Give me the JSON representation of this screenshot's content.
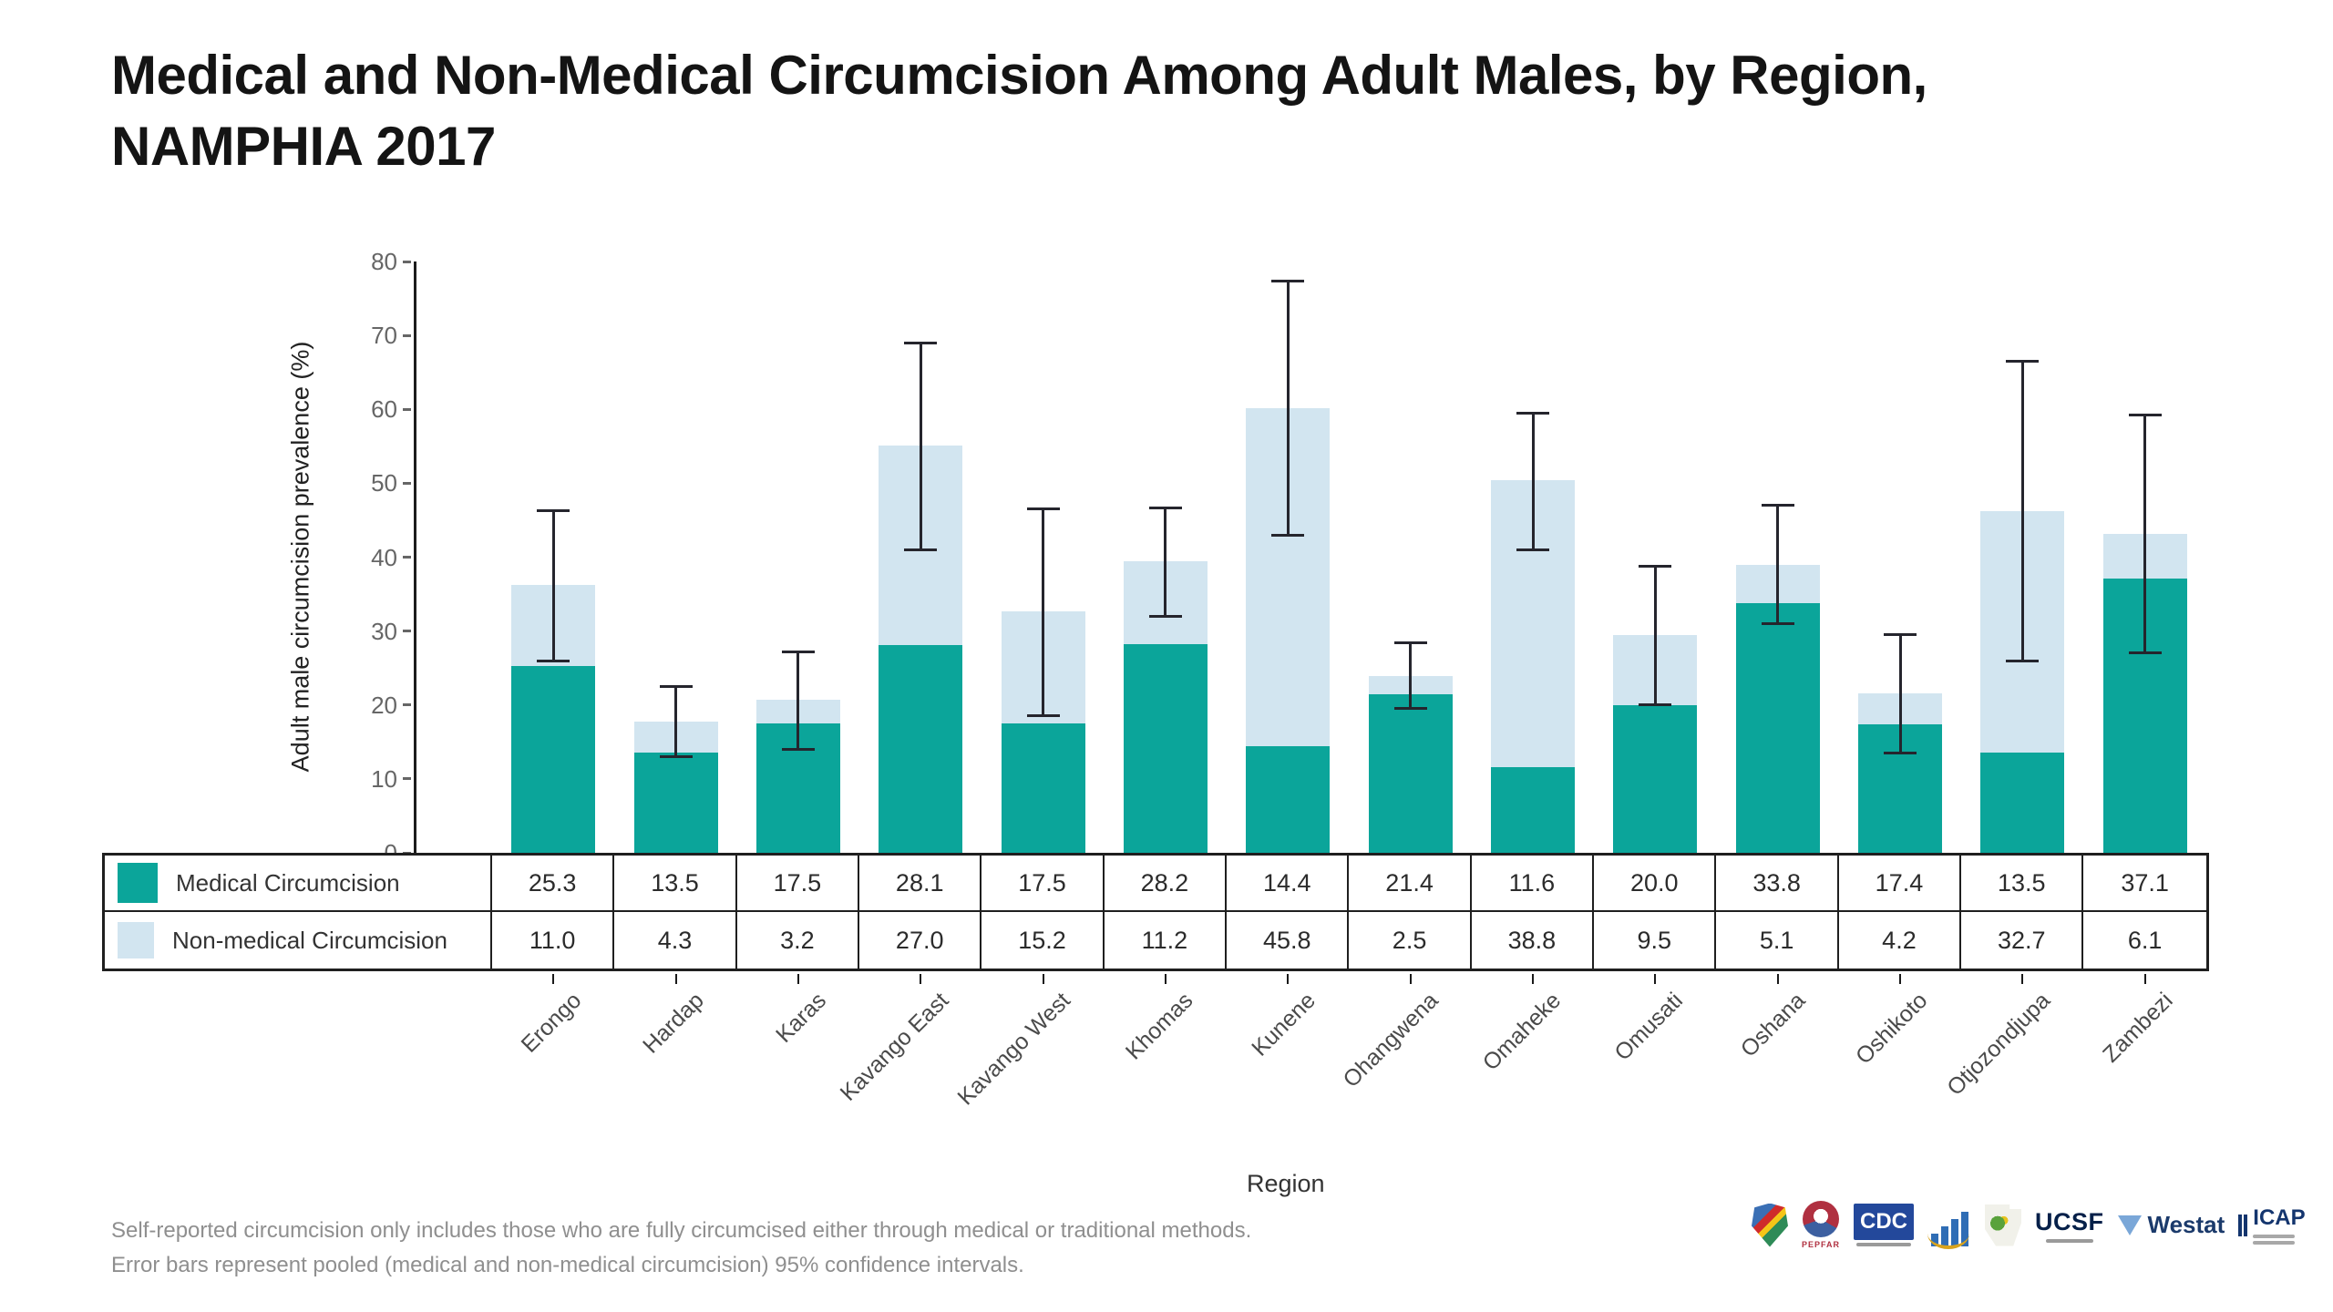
{
  "title": {
    "line1": "Medical and Non-Medical Circumcision Among Adult Males, by Region,",
    "line2": "NAMPHIA 2017"
  },
  "chart_data": {
    "type": "bar",
    "stacked": true,
    "title": "Medical and Non-Medical Circumcision Among Adult Males, by Region, NAMPHIA 2017",
    "xlabel": "Region",
    "ylabel": "Adult male circumcision prevalence (%)",
    "ylim": [
      0,
      80
    ],
    "yticks": [
      0,
      10,
      20,
      30,
      40,
      50,
      60,
      70,
      80
    ],
    "grid": false,
    "legend_position": "table-left",
    "categories": [
      "Erongo",
      "Hardap",
      "Karas",
      "Kavango East",
      "Kavango West",
      "Khomas",
      "Kunene",
      "Ohangwena",
      "Omaheke",
      "Omusati",
      "Oshana",
      "Oshikoto",
      "Otjozondjupa",
      "Zambezi"
    ],
    "series": [
      {
        "name": "Medical Circumcision",
        "color": "#0ba59a",
        "values": [
          25.3,
          13.5,
          17.5,
          28.1,
          17.5,
          28.2,
          14.4,
          21.4,
          11.6,
          20.0,
          33.8,
          17.4,
          13.5,
          37.1
        ]
      },
      {
        "name": "Non-medical Circumcision",
        "color": "#d2e5f0",
        "values": [
          11.0,
          4.3,
          3.2,
          27.0,
          15.2,
          11.2,
          45.8,
          2.5,
          38.8,
          9.5,
          5.1,
          4.2,
          32.7,
          6.1
        ]
      }
    ],
    "totals": [
      36.3,
      17.8,
      20.7,
      55.1,
      32.7,
      39.4,
      60.2,
      23.9,
      50.4,
      29.5,
      38.9,
      21.6,
      46.2,
      43.2
    ],
    "error_bars": {
      "description": "pooled (medical and non-medical circumcision) 95% confidence intervals",
      "low": [
        26.0,
        13.0,
        14.0,
        41.0,
        18.5,
        32.0,
        43.0,
        19.5,
        41.0,
        20.0,
        31.0,
        13.5,
        26.0,
        27.0
      ],
      "high": [
        46.3,
        22.5,
        27.2,
        69.0,
        46.5,
        46.6,
        77.3,
        28.4,
        59.5,
        38.8,
        47.0,
        29.5,
        66.5,
        59.2
      ]
    }
  },
  "footnote": {
    "line1": "Self-reported circumcision only includes those who are fully circumcised either through medical or traditional methods.",
    "line2": "Error bars represent pooled (medical and non-medical circumcision) 95% confidence intervals."
  },
  "colors": {
    "medical": "#0ba59a",
    "nonmedical": "#d2e5f0",
    "error_bar": "#25252d",
    "axis": "#1c1c1c",
    "table_border": "#1f1f1f"
  },
  "logos": [
    {
      "name": "Namibia coat of arms",
      "text": ""
    },
    {
      "name": "PEPFAR",
      "text": "PEPFAR"
    },
    {
      "name": "CDC",
      "text": "CDC"
    },
    {
      "name": "Namibia Statistics Agency",
      "text": ""
    },
    {
      "name": "Ministry of Health and Social Services Namibia",
      "text": ""
    },
    {
      "name": "UCSF",
      "text": "UCSF"
    },
    {
      "name": "Westat",
      "text": "Westat"
    },
    {
      "name": "ICAP",
      "text": "ICAP"
    }
  ]
}
